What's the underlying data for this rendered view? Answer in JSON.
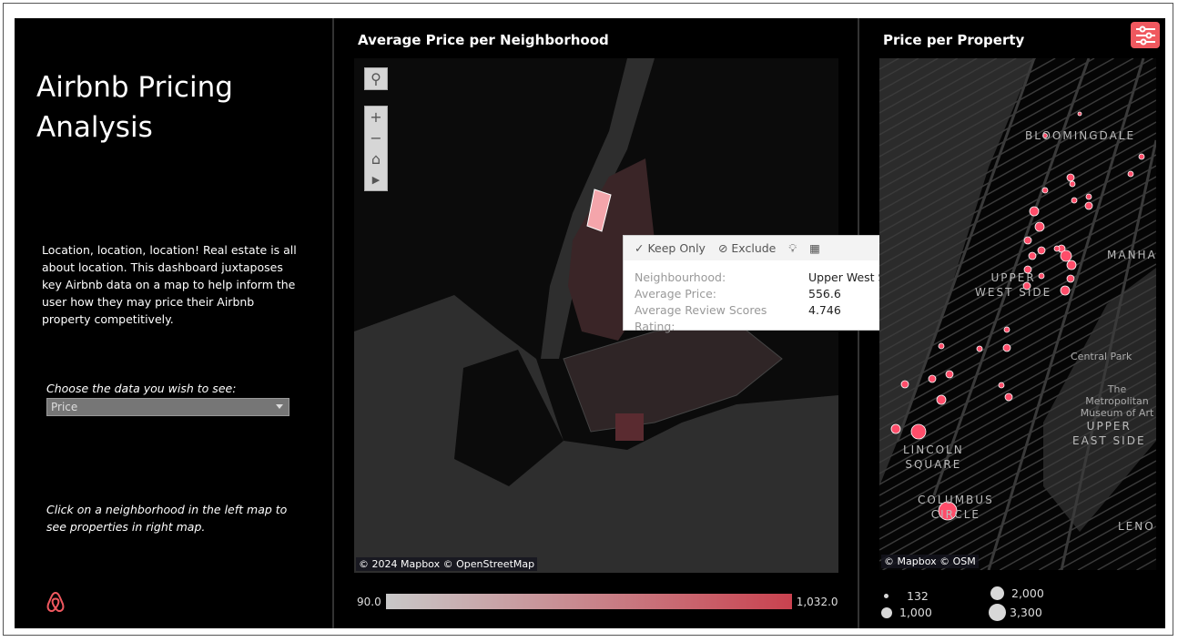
{
  "left_panel": {
    "title_line1": "Airbnb Pricing",
    "title_line2": "Analysis",
    "description": "Location, location, location!  Real estate is all about location.  This dashboard juxtaposes key Airbnb data on a map to help inform the user how they may price their Airbnb property competitively.",
    "parameter_label": "Choose the data you wish to see:",
    "parameter_value": "Price",
    "hint": "Click on a neighborhood in the left map to see properties in right map.",
    "logo": "airbnb-logo"
  },
  "neighborhood_map": {
    "title": "Average Price per Neighborhood",
    "attribution": "© 2024 Mapbox  © OpenStreetMap",
    "controls": [
      "search-icon",
      "zoom-in-icon",
      "zoom-out-icon",
      "home-icon",
      "play-icon"
    ],
    "color_legend": {
      "min": "90.0",
      "max": "1,032.0",
      "min_color": "#c8c8c8",
      "max_color": "#c9424f"
    },
    "tooltip": {
      "actions": {
        "keep_only": "Keep Only",
        "exclude": "Exclude"
      },
      "rows": [
        {
          "key": "Neighbourhood:",
          "value": "Upper West Side"
        },
        {
          "key": "Average Price:",
          "value": "556.6"
        },
        {
          "key": "Average Review Scores Rating:",
          "value": "4.746"
        }
      ]
    }
  },
  "property_map": {
    "title": "Price per Property",
    "attribution": "© Mapbox  © OSM",
    "labels": {
      "bloomingdale": "BLOOMINGDALE",
      "manhattan": "MANHA",
      "uws1": "UPPER",
      "uws2": "WEST SIDE",
      "central_park": "Central Park",
      "met1": "The Metropolitan",
      "met2": "Museum of Art",
      "ues1": "UPPER",
      "ues2": "EAST SIDE",
      "lincoln1": "LINCOLN",
      "lincoln2": "SQUARE",
      "columbus1": "COLUMBUS",
      "columbus2": "CIRCLE",
      "lenox": "LENO"
    },
    "dot_color": "#ff4d6a",
    "size_legend": [
      "132",
      "1,000",
      "2,000",
      "3,300"
    ]
  },
  "toolbar": {
    "filter_icon": "sliders-icon",
    "color": "#f0585f"
  }
}
